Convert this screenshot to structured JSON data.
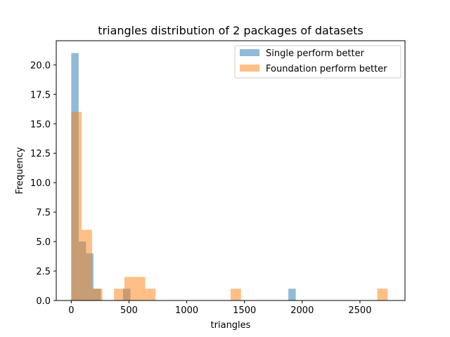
{
  "chart_data": {
    "type": "histogram",
    "title": "triangles distribution of 2 packages of datasets",
    "xlabel": "triangles",
    "ylabel": "Frequency",
    "xlim": [
      -130,
      2890
    ],
    "ylim": [
      0,
      22.05
    ],
    "xticks": [
      0,
      500,
      1000,
      1500,
      2000,
      2500
    ],
    "yticks": [
      0.0,
      2.5,
      5.0,
      7.5,
      10.0,
      12.5,
      15.0,
      17.5,
      20.0
    ],
    "legend_position": "top-right",
    "series": [
      {
        "name": "Single perform better",
        "color": "#1f77b4",
        "opacity": 0.5,
        "bins": [
          {
            "x0": 0,
            "x1": 64,
            "value": 21
          },
          {
            "x0": 64,
            "x1": 128,
            "value": 5
          },
          {
            "x0": 128,
            "x1": 192,
            "value": 4
          },
          {
            "x0": 192,
            "x1": 256,
            "value": 1
          },
          {
            "x0": 448,
            "x1": 512,
            "value": 1
          },
          {
            "x0": 1880,
            "x1": 1944,
            "value": 1
          }
        ]
      },
      {
        "name": "Foundation perform better",
        "color": "#ff7f0e",
        "opacity": 0.5,
        "bins": [
          {
            "x0": 0,
            "x1": 90,
            "value": 16
          },
          {
            "x0": 90,
            "x1": 180,
            "value": 6
          },
          {
            "x0": 180,
            "x1": 270,
            "value": 1
          },
          {
            "x0": 370,
            "x1": 460,
            "value": 1
          },
          {
            "x0": 460,
            "x1": 640,
            "value": 2
          },
          {
            "x0": 640,
            "x1": 730,
            "value": 1
          },
          {
            "x0": 1380,
            "x1": 1470,
            "value": 1
          },
          {
            "x0": 2650,
            "x1": 2740,
            "value": 1
          }
        ]
      }
    ]
  }
}
